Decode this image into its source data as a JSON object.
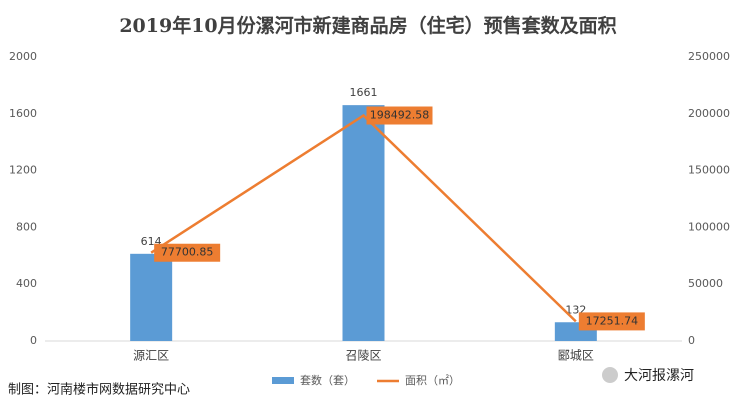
{
  "chart_data": {
    "type": "bar",
    "title": "2019年10月份漯河市新建商品房（住宅）预售套数及面积",
    "categories": [
      "源汇区",
      "召陵区",
      "郾城区"
    ],
    "series": [
      {
        "name": "套数（套）",
        "type": "bar",
        "color": "#5b9bd5",
        "values": [
          614,
          1661,
          132
        ]
      },
      {
        "name": "面积（㎡）",
        "type": "line",
        "axis": "y2",
        "color": "#ed7d31",
        "values": [
          77700.85,
          198492.58,
          17251.74
        ]
      }
    ],
    "ylim": [
      0,
      2000
    ],
    "yticks": [
      0,
      400,
      800,
      1200,
      1600,
      2000
    ],
    "y2lim": [
      0,
      250000
    ],
    "y2ticks": [
      0,
      50000,
      100000,
      150000,
      200000,
      250000
    ],
    "grid": false,
    "legend": "bottom",
    "source": "制图：河南楼市网数据研究中心",
    "watermark": "大河报漯河"
  }
}
